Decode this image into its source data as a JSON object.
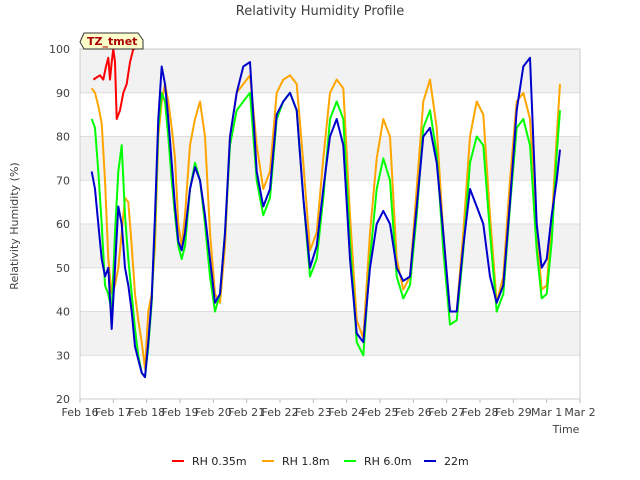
{
  "chart_data": {
    "type": "line",
    "title": "Relativity Humidity Profile",
    "xlabel": "Time",
    "ylabel": "Relativity Humidity (%)",
    "station_label": "TZ_tmet",
    "xlim": [
      0,
      15
    ],
    "ylim": [
      20,
      100
    ],
    "yticks": [
      20,
      30,
      40,
      50,
      60,
      70,
      80,
      90,
      100
    ],
    "xtick_positions": [
      0,
      1,
      2,
      3,
      4,
      5,
      6,
      7,
      8,
      9,
      10,
      11,
      12,
      13,
      14,
      15
    ],
    "xtick_labels": [
      "Feb 16",
      "Feb 17",
      "Feb 18",
      "Feb 19",
      "Feb 20",
      "Feb 21",
      "Feb 22",
      "Feb 23",
      "Feb 24",
      "Feb 25",
      "Feb 26",
      "Feb 27",
      "Feb 28",
      "Feb 29",
      "Mar 1",
      "Mar 2"
    ],
    "grid": true,
    "legend_position": "bottom-center",
    "series": [
      {
        "name": "RH 0.35m",
        "color": "#ff0000",
        "x": [
          0.4,
          0.5,
          0.6,
          0.7,
          0.78,
          0.85,
          0.9,
          0.95,
          1.0,
          1.05,
          1.1,
          1.2,
          1.3,
          1.4,
          1.5,
          1.6,
          1.65
        ],
        "y": [
          93,
          93.5,
          94,
          93,
          96,
          98,
          93,
          97,
          100,
          97,
          84,
          86,
          90,
          92,
          97,
          100,
          100
        ]
      },
      {
        "name": "RH 1.8m",
        "color": "#ffa500",
        "x": [
          0.35,
          0.45,
          0.55,
          0.65,
          0.75,
          0.85,
          0.95,
          1.05,
          1.15,
          1.25,
          1.35,
          1.45,
          1.55,
          1.65,
          1.75,
          1.85,
          1.95,
          2.05,
          2.15,
          2.25,
          2.35,
          2.45,
          2.55,
          2.65,
          2.75,
          2.85,
          2.95,
          3.05,
          3.15,
          3.3,
          3.45,
          3.6,
          3.75,
          3.9,
          4.05,
          4.2,
          4.35,
          4.5,
          4.7,
          4.9,
          5.1,
          5.3,
          5.5,
          5.7,
          5.9,
          6.1,
          6.3,
          6.5,
          6.7,
          6.9,
          7.1,
          7.3,
          7.5,
          7.7,
          7.9,
          8.1,
          8.3,
          8.5,
          8.7,
          8.9,
          9.1,
          9.3,
          9.5,
          9.7,
          9.9,
          10.1,
          10.3,
          10.5,
          10.7,
          10.9,
          11.1,
          11.3,
          11.5,
          11.7,
          11.9,
          12.1,
          12.3,
          12.5,
          12.7,
          12.9,
          13.1,
          13.3,
          13.5,
          13.7,
          13.85,
          14.0,
          14.15,
          14.3,
          14.4
        ],
        "y": [
          91,
          90,
          87,
          83,
          70,
          52,
          44,
          46,
          50,
          58,
          66,
          65,
          55,
          44,
          38,
          33,
          27,
          40,
          44,
          55,
          80,
          88,
          92,
          88,
          82,
          75,
          60,
          55,
          62,
          78,
          84,
          88,
          80,
          58,
          44,
          42,
          55,
          80,
          90,
          92,
          94,
          78,
          68,
          72,
          90,
          93,
          94,
          92,
          74,
          54,
          58,
          75,
          90,
          93,
          91,
          62,
          38,
          34,
          58,
          75,
          84,
          80,
          52,
          45,
          48,
          68,
          88,
          93,
          82,
          58,
          40,
          40,
          58,
          80,
          88,
          85,
          62,
          42,
          48,
          70,
          88,
          90,
          84,
          58,
          45,
          46,
          60,
          80,
          92
        ]
      },
      {
        "name": "RH 6.0m",
        "color": "#00ff00",
        "x": [
          0.35,
          0.45,
          0.55,
          0.65,
          0.75,
          0.85,
          0.95,
          1.05,
          1.15,
          1.25,
          1.35,
          1.45,
          1.55,
          1.65,
          1.75,
          1.85,
          1.95,
          2.05,
          2.15,
          2.25,
          2.35,
          2.45,
          2.55,
          2.65,
          2.75,
          2.85,
          2.95,
          3.05,
          3.15,
          3.3,
          3.45,
          3.6,
          3.75,
          3.9,
          4.05,
          4.2,
          4.35,
          4.5,
          4.7,
          4.9,
          5.1,
          5.3,
          5.5,
          5.7,
          5.9,
          6.1,
          6.3,
          6.5,
          6.7,
          6.9,
          7.1,
          7.3,
          7.5,
          7.7,
          7.9,
          8.1,
          8.3,
          8.5,
          8.7,
          8.9,
          9.1,
          9.3,
          9.5,
          9.7,
          9.9,
          10.1,
          10.3,
          10.5,
          10.7,
          10.9,
          11.1,
          11.3,
          11.5,
          11.7,
          11.9,
          12.1,
          12.3,
          12.5,
          12.7,
          12.9,
          13.1,
          13.3,
          13.5,
          13.7,
          13.85,
          14.0,
          14.15,
          14.3,
          14.4
        ],
        "y": [
          84,
          82,
          72,
          60,
          46,
          44,
          40,
          58,
          72,
          78,
          62,
          52,
          44,
          36,
          30,
          26,
          25,
          32,
          42,
          60,
          82,
          90,
          88,
          80,
          70,
          62,
          55,
          52,
          55,
          68,
          74,
          70,
          60,
          48,
          40,
          44,
          58,
          78,
          86,
          88,
          90,
          70,
          62,
          66,
          84,
          88,
          90,
          86,
          66,
          48,
          52,
          66,
          84,
          88,
          84,
          56,
          33,
          30,
          52,
          68,
          75,
          70,
          48,
          43,
          46,
          62,
          82,
          86,
          76,
          54,
          37,
          38,
          54,
          74,
          80,
          78,
          58,
          40,
          44,
          64,
          82,
          84,
          78,
          54,
          43,
          44,
          56,
          76,
          86
        ]
      },
      {
        "name": "22m",
        "color": "#0000cc",
        "x": [
          0.35,
          0.45,
          0.55,
          0.65,
          0.75,
          0.85,
          0.95,
          1.05,
          1.15,
          1.25,
          1.35,
          1.45,
          1.55,
          1.65,
          1.75,
          1.85,
          1.95,
          2.05,
          2.15,
          2.25,
          2.35,
          2.45,
          2.55,
          2.65,
          2.75,
          2.85,
          2.95,
          3.05,
          3.15,
          3.3,
          3.45,
          3.6,
          3.75,
          3.9,
          4.05,
          4.2,
          4.35,
          4.5,
          4.7,
          4.9,
          5.1,
          5.3,
          5.5,
          5.7,
          5.9,
          6.1,
          6.3,
          6.5,
          6.7,
          6.9,
          7.1,
          7.3,
          7.5,
          7.7,
          7.9,
          8.1,
          8.3,
          8.5,
          8.7,
          8.9,
          9.1,
          9.3,
          9.5,
          9.7,
          9.9,
          10.1,
          10.3,
          10.5,
          10.7,
          10.9,
          11.1,
          11.3,
          11.5,
          11.7,
          11.9,
          12.1,
          12.3,
          12.5,
          12.7,
          12.9,
          13.1,
          13.3,
          13.5,
          13.7,
          13.85,
          14.0,
          14.15,
          14.3,
          14.4
        ],
        "y": [
          72,
          68,
          60,
          52,
          48,
          50,
          36,
          50,
          64,
          60,
          50,
          46,
          40,
          32,
          29,
          26,
          25,
          33,
          43,
          62,
          84,
          96,
          92,
          84,
          74,
          64,
          56,
          54,
          58,
          68,
          73,
          70,
          62,
          52,
          42,
          44,
          58,
          80,
          90,
          96,
          97,
          72,
          64,
          68,
          85,
          88,
          90,
          86,
          66,
          50,
          55,
          68,
          80,
          84,
          78,
          52,
          35,
          33,
          50,
          60,
          63,
          60,
          50,
          47,
          48,
          64,
          80,
          82,
          74,
          58,
          40,
          40,
          55,
          68,
          64,
          60,
          48,
          42,
          46,
          65,
          86,
          96,
          98,
          60,
          50,
          52,
          62,
          70,
          77
        ]
      }
    ]
  }
}
